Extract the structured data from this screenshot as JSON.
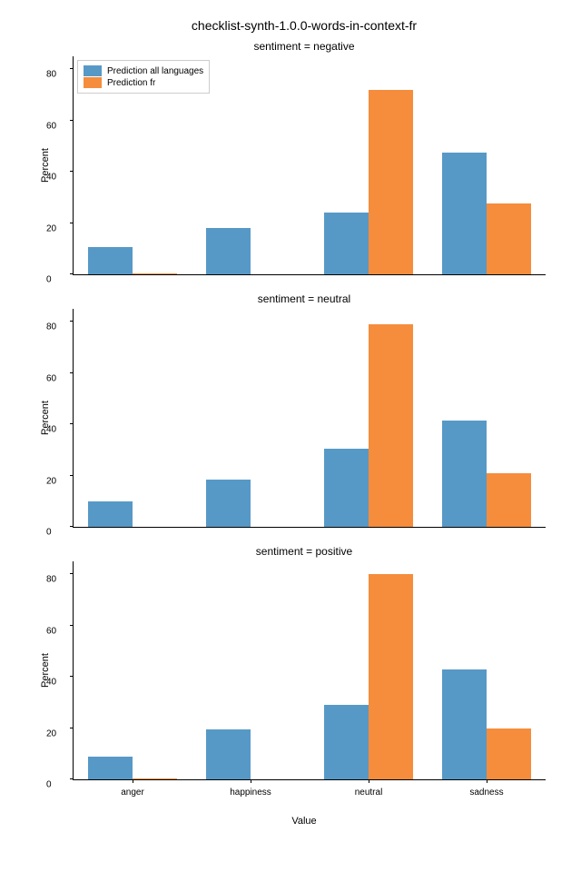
{
  "suptitle": "checklist-synth-1.0.0-words-in-context-fr",
  "ylabel": "Percent",
  "xlabel": "Value",
  "categories": [
    "anger",
    "happiness",
    "neutral",
    "sadness"
  ],
  "legend_labels": [
    "Prediction all languages",
    "Prediction fr"
  ],
  "colors": {
    "all": "#5799c6",
    "fr": "#f58d3c"
  },
  "bar_width": 0.38,
  "ylim": [
    0,
    85
  ],
  "yticks": [
    0,
    20,
    40,
    60,
    80
  ],
  "background_color": "#ffffff",
  "subplots": [
    {
      "title": "sentiment = negative",
      "series_all": [
        10.5,
        18,
        24,
        47.5
      ],
      "series_fr": [
        0.3,
        0,
        72,
        27.5
      ]
    },
    {
      "title": "sentiment = neutral",
      "series_all": [
        9.8,
        18.3,
        30.5,
        41.5
      ],
      "series_fr": [
        0,
        0,
        79,
        21
      ]
    },
    {
      "title": "sentiment = positive",
      "series_all": [
        8.7,
        19.5,
        29,
        43
      ],
      "series_fr": [
        0.3,
        0,
        80,
        20
      ]
    }
  ]
}
